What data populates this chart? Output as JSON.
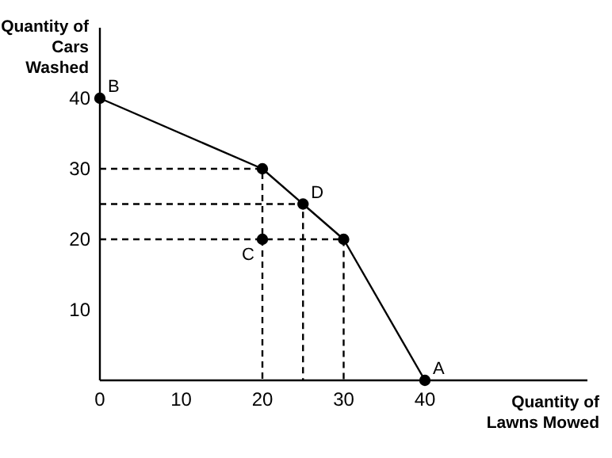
{
  "chart_data": {
    "type": "line",
    "xlabel": "Quantity of\nLawns Mowed",
    "ylabel": "Quantity of\nCars\nWashed",
    "xlim": [
      0,
      60
    ],
    "ylim": [
      0,
      50
    ],
    "xticks": [
      0,
      10,
      20,
      30,
      40
    ],
    "yticks": [
      10,
      20,
      30,
      40
    ],
    "grid": false,
    "series": [
      {
        "color": "#000000",
        "x": [
          0,
          20,
          25,
          30,
          40
        ],
        "values": [
          40,
          30,
          25,
          20,
          0
        ],
        "marker": "circle",
        "line_style": "solid"
      },
      {
        "color": "#000000",
        "x": [
          0,
          20,
          20
        ],
        "values": [
          30,
          30,
          0
        ],
        "marker": "none",
        "line_style": "dashed"
      },
      {
        "color": "#000000",
        "x": [
          0,
          25,
          25
        ],
        "values": [
          25,
          25,
          0
        ],
        "marker": "none",
        "line_style": "dashed"
      },
      {
        "color": "#000000",
        "x": [
          0,
          30,
          30
        ],
        "values": [
          20,
          20,
          0
        ],
        "marker": "none",
        "line_style": "dashed"
      },
      {
        "type": "scatter",
        "color": "#000000",
        "x": [
          20
        ],
        "values": [
          20
        ],
        "marker": "circle"
      }
    ],
    "annotations": [
      {
        "text": "B",
        "x": 0,
        "y": 40
      },
      {
        "text": "D",
        "x": 25,
        "y": 25
      },
      {
        "text": "A",
        "x": 40,
        "y": 0
      },
      {
        "text": "C",
        "x": 20,
        "y": 20
      }
    ]
  }
}
